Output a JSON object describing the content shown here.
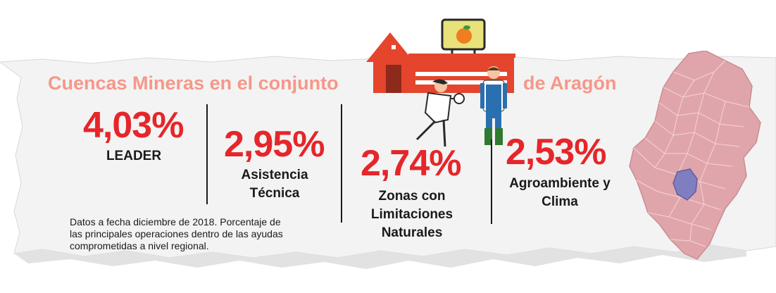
{
  "title": {
    "part1": "Cuencas Mineras en el conjunto",
    "part2": "de Aragón"
  },
  "stats": [
    {
      "value": "4,03%",
      "label": "LEADER"
    },
    {
      "value": "2,95%",
      "label": "Asistencia\nTécnica"
    },
    {
      "value": "2,74%",
      "label": "Zonas con\nLimitaciones\nNaturales"
    },
    {
      "value": "2,53%",
      "label": "Agroambiente y\nClima"
    }
  ],
  "note": "Datos a fecha diciembre de 2018. Porcentaje de\nlas principales operaciones dentro de las ayudas\ncomprometidas a nivel regional.",
  "colors": {
    "title": "#f6978a",
    "value": "#e5262a",
    "map_fill": "#e0a5ab",
    "map_highlight": "#7f7fc0",
    "barn": "#e4452c"
  },
  "icons": [
    "barn-icon",
    "orange-sign-icon",
    "scientist-icon",
    "farmer-icon",
    "aragon-map-icon"
  ]
}
